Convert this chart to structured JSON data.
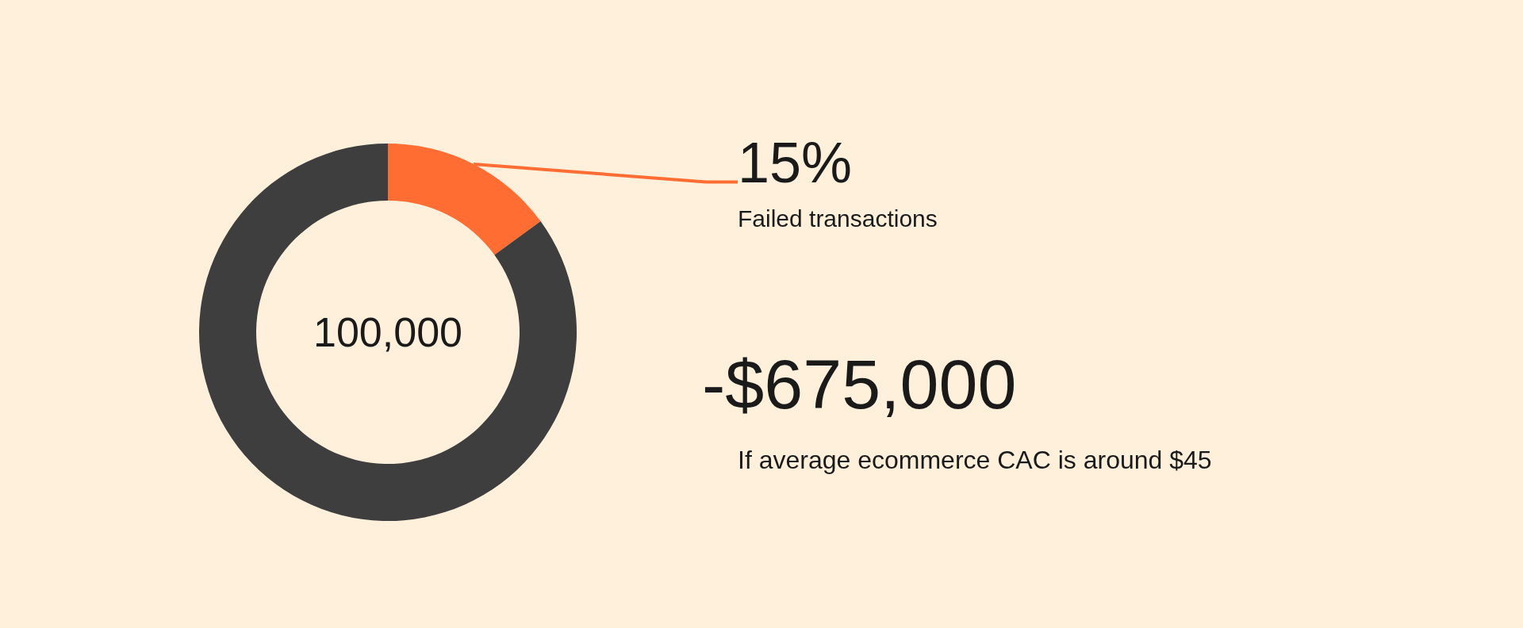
{
  "chart_data": {
    "type": "donut",
    "categories": [
      "Failed transactions",
      null
    ],
    "values": [
      15,
      85
    ],
    "colors": [
      "#ff6d33",
      "#3e3e3e"
    ],
    "value_labels": [
      "15%",
      null
    ],
    "legend": false,
    "annotations": [
      "100,000",
      "-$675,000",
      "If average ecommerce CAC is around $45"
    ]
  }
}
